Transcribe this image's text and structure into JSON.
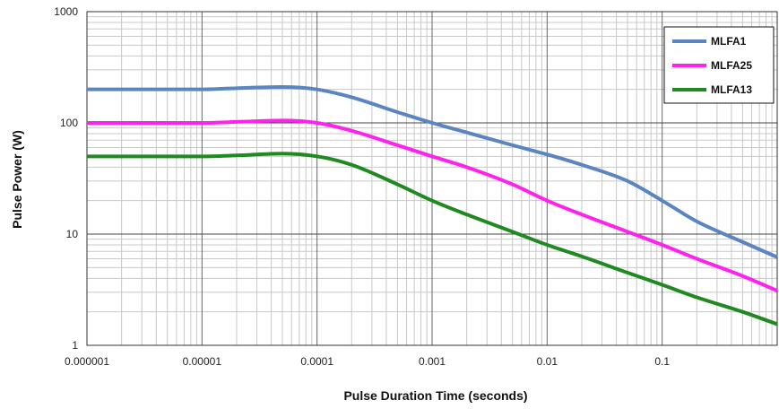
{
  "chart_data": {
    "type": "line",
    "title": "",
    "xlabel": "Pulse Duration Time (seconds)",
    "ylabel": "Pulse Power (W)",
    "xscale": "log",
    "yscale": "log",
    "xlim": [
      1e-06,
      1
    ],
    "ylim": [
      1,
      1000
    ],
    "grid": true,
    "legend_position": "top-right",
    "xticks": [
      {
        "value": 1e-06,
        "label": "0.000001"
      },
      {
        "value": 1e-05,
        "label": "0.00001"
      },
      {
        "value": 0.0001,
        "label": "0.0001"
      },
      {
        "value": 0.001,
        "label": "0.001"
      },
      {
        "value": 0.01,
        "label": "0.01"
      },
      {
        "value": 0.1,
        "label": "0.1"
      }
    ],
    "yticks": [
      {
        "value": 1,
        "label": "1"
      },
      {
        "value": 10,
        "label": "10"
      },
      {
        "value": 100,
        "label": "100"
      },
      {
        "value": 1000,
        "label": "1000"
      }
    ],
    "series": [
      {
        "name": "MLFA1",
        "color": "#5b85c0",
        "x": [
          1e-06,
          1e-05,
          2e-05,
          5e-05,
          0.0001,
          0.0002,
          0.0005,
          0.001,
          0.002,
          0.005,
          0.01,
          0.02,
          0.05,
          0.1,
          0.2,
          0.5,
          1
        ],
        "y": [
          200,
          200,
          205,
          210,
          200,
          170,
          125,
          100,
          82,
          63,
          52,
          42,
          30,
          20,
          13,
          8.5,
          6.2
        ]
      },
      {
        "name": "MLFA25",
        "color": "#ff22ee",
        "x": [
          1e-06,
          1e-05,
          2e-05,
          5e-05,
          0.0001,
          0.0002,
          0.0005,
          0.001,
          0.002,
          0.005,
          0.01,
          0.02,
          0.05,
          0.1,
          0.2,
          0.5,
          1
        ],
        "y": [
          100,
          100,
          102,
          105,
          100,
          85,
          63,
          50,
          40,
          28,
          20,
          15,
          10.5,
          8,
          6,
          4.2,
          3.1
        ]
      },
      {
        "name": "MLFA13",
        "color": "#1f8a1f",
        "x": [
          1e-06,
          1e-05,
          2e-05,
          5e-05,
          0.0001,
          0.0002,
          0.0005,
          0.001,
          0.002,
          0.005,
          0.01,
          0.02,
          0.05,
          0.1,
          0.2,
          0.5,
          1
        ],
        "y": [
          50,
          50,
          51,
          53,
          50,
          42,
          28,
          20,
          15,
          10.5,
          8,
          6.3,
          4.5,
          3.5,
          2.7,
          2,
          1.55
        ]
      }
    ]
  }
}
